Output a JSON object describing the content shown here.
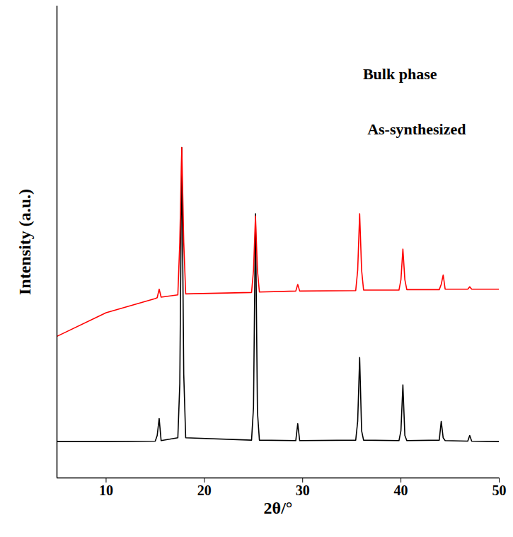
{
  "chart_data": {
    "type": "line",
    "x_label": "2θ/°",
    "y_label": "Intensity (a.u.)",
    "xlim": [
      5,
      50
    ],
    "xticks": [
      10,
      20,
      30,
      40,
      50
    ],
    "ylim": [
      0,
      100
    ],
    "yticks": [],
    "tick_labels": "x",
    "grid": false,
    "x": [
      5,
      10,
      15,
      15.2,
      15.4,
      15.6,
      17.3,
      17.5,
      17.7,
      17.9,
      18.1,
      24.8,
      25.0,
      25.2,
      25.4,
      25.6,
      29.3,
      29.5,
      29.7,
      35.4,
      35.6,
      35.8,
      36.0,
      36.2,
      39.8,
      40.0,
      40.2,
      40.4,
      40.6,
      43.9,
      44.1,
      44.3,
      44.5,
      46.8,
      47.0,
      47.2,
      50
    ],
    "series": [
      {
        "name": "As-synthesized",
        "color": "#000000",
        "values": [
          7.7,
          7.7,
          7.8,
          9,
          12.6,
          7.9,
          8.5,
          20,
          70,
          22,
          8.5,
          8,
          15,
          56,
          14,
          8,
          7.9,
          11.5,
          7.9,
          8,
          12,
          25.5,
          10,
          8,
          7.9,
          10,
          19.7,
          9,
          7.9,
          8,
          12,
          8.5,
          7.9,
          7.8,
          9,
          7.8,
          7.7
        ]
      },
      {
        "name": "Bulk phase",
        "color": "#ff0000",
        "values": [
          30,
          35,
          38,
          38.2,
          40,
          38.3,
          38.8,
          50,
          70,
          50,
          39,
          39.3,
          44,
          55.5,
          44,
          39.4,
          39.6,
          41,
          39.6,
          39.7,
          44,
          56,
          44,
          39.8,
          39.8,
          42,
          48.5,
          42,
          39.9,
          39.9,
          41,
          43,
          40,
          40,
          40.5,
          40,
          40
        ]
      }
    ],
    "annotations": [
      {
        "text": "Bulk phase",
        "x": 39.9,
        "y": 85.6
      },
      {
        "text": "As-synthesized",
        "x": 41.6,
        "y": 73.8
      }
    ]
  }
}
